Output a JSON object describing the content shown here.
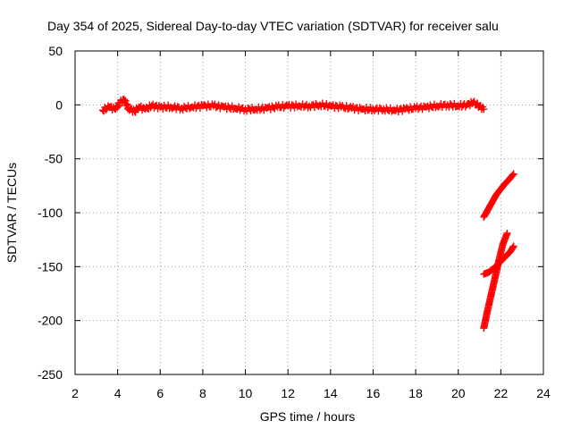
{
  "chart_data": {
    "type": "scatter",
    "title": "Day 354 of 2025, Sidereal Day-to-day VTEC variation (SDTVAR) for receiver salu",
    "xlabel": "GPS time / hours",
    "ylabel": "SDTVAR / TECUs",
    "xlim": [
      2,
      24
    ],
    "ylim": [
      -250,
      50
    ],
    "xticks": [
      "2",
      "4",
      "6",
      "8",
      "10",
      "12",
      "14",
      "16",
      "18",
      "20",
      "22",
      "24"
    ],
    "yticks": [
      "50",
      "0",
      "-50",
      "-100",
      "-150",
      "-200",
      "-250"
    ],
    "grid": true,
    "marker": "+",
    "color": "#ff0000",
    "series": [
      {
        "x": [
          3.3,
          3.6,
          3.9,
          4.1,
          4.3,
          4.5,
          4.8,
          5.0,
          5.3,
          5.6,
          6.0,
          6.5,
          7.0,
          7.5,
          8.0,
          8.5,
          9.0,
          9.5,
          10.0,
          10.5,
          11.0,
          11.5,
          12.0,
          12.5,
          13.0,
          13.5,
          14.0,
          14.5,
          15.0,
          15.5,
          16.0,
          16.5,
          17.0,
          17.5,
          18.0,
          18.5,
          19.0,
          19.5,
          20.0,
          20.4,
          20.7,
          21.0,
          21.2
        ],
        "y": [
          -5,
          -2,
          -4,
          2,
          5,
          -3,
          -6,
          -2,
          -4,
          -1,
          -2,
          -2,
          -3,
          -2,
          -1,
          -1,
          -2,
          -3,
          -4,
          -4,
          -3,
          -2,
          -1,
          -1,
          -1,
          0,
          -1,
          -2,
          -3,
          -4,
          -4,
          -4,
          -5,
          -4,
          -3,
          -2,
          -1,
          0,
          -1,
          0,
          2,
          -1,
          -4
        ]
      },
      {
        "x": [
          21.2,
          21.4,
          21.6,
          21.8,
          22.0,
          22.2,
          22.4,
          22.6
        ],
        "y": [
          -104,
          -97,
          -90,
          -83,
          -78,
          -73,
          -69,
          -64
        ]
      },
      {
        "x": [
          21.2,
          21.45,
          21.7,
          21.95,
          22.2,
          22.45,
          22.6
        ],
        "y": [
          -157,
          -155,
          -151,
          -146,
          -141,
          -136,
          -131
        ]
      },
      {
        "x": [
          21.2,
          21.35,
          21.5,
          21.65,
          21.8,
          21.95,
          22.1,
          22.3
        ],
        "y": [
          -207,
          -193,
          -180,
          -167,
          -154,
          -141,
          -129,
          -119
        ]
      }
    ]
  }
}
